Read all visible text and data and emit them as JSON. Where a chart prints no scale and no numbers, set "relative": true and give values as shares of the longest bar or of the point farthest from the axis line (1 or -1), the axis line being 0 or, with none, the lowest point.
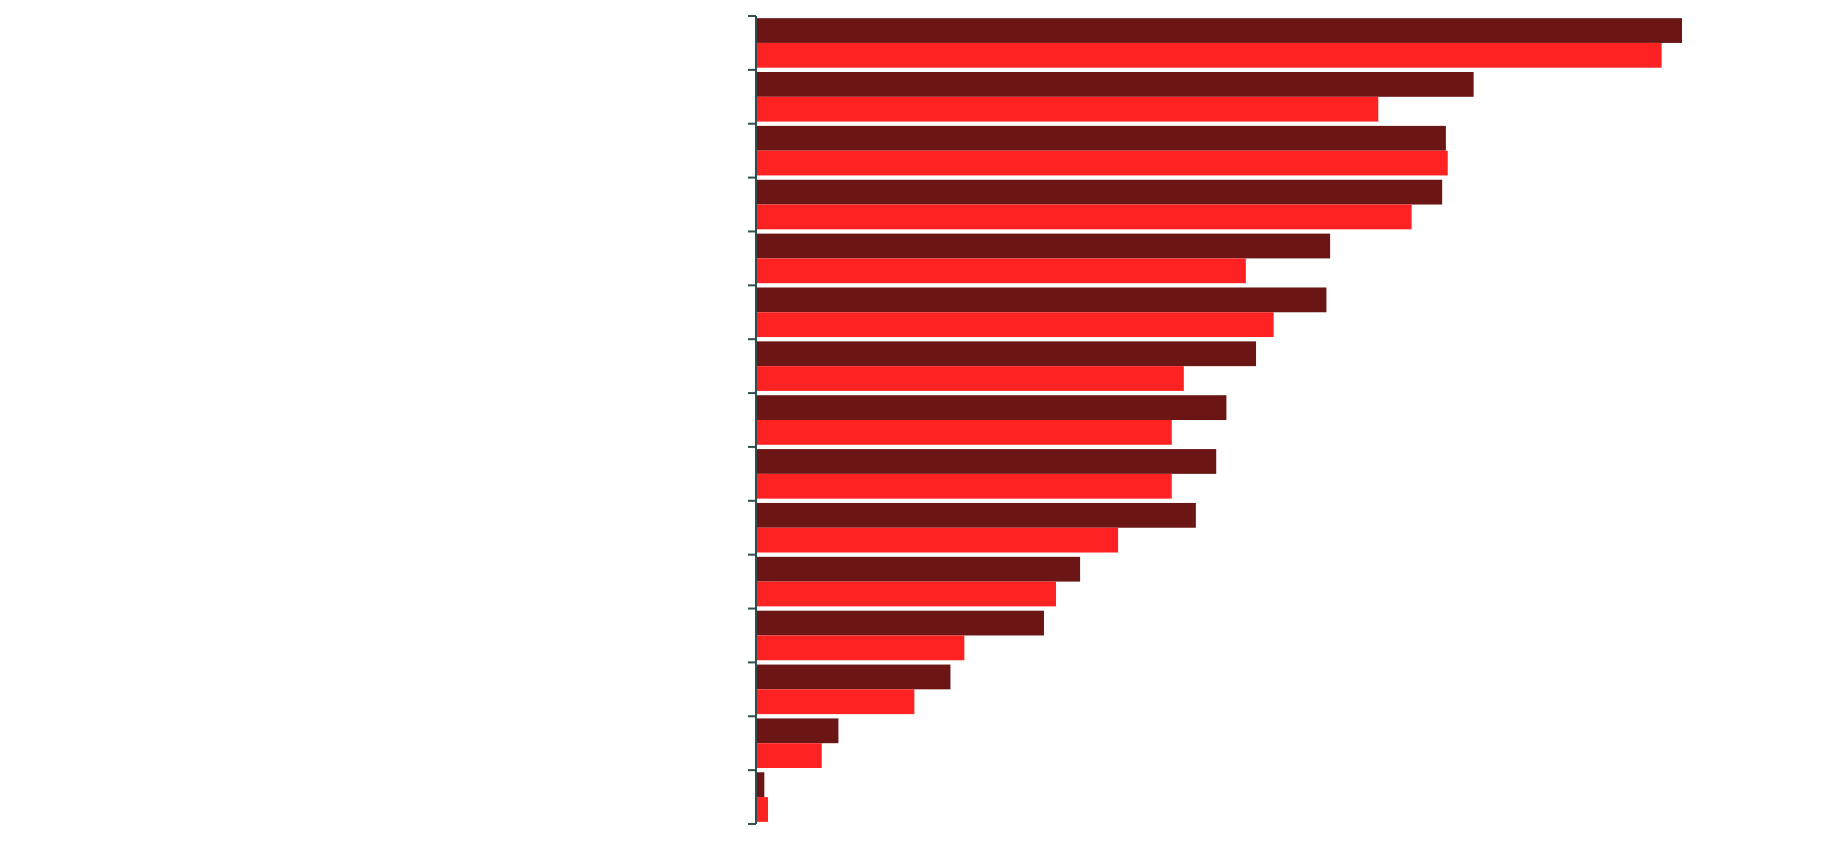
{
  "chart_data": {
    "type": "bar",
    "orientation": "horizontal",
    "relative": true,
    "categories": [
      null,
      null,
      null,
      null,
      null,
      null,
      null,
      null,
      null,
      null,
      null,
      null,
      null,
      null,
      null
    ],
    "series": [
      {
        "color": "#6b1515",
        "values": [
          1,
          0.775,
          0.745,
          0.741,
          0.62,
          0.616,
          0.54,
          0.508,
          0.497,
          0.475,
          0.35,
          0.311,
          0.21,
          0.089,
          0.009
        ]
      },
      {
        "color": "#ff2222",
        "values": [
          0.978,
          0.672,
          0.747,
          0.708,
          0.529,
          0.559,
          0.462,
          0.449,
          0.449,
          0.391,
          0.324,
          0.225,
          0.171,
          0.071,
          0.013
        ]
      }
    ]
  }
}
